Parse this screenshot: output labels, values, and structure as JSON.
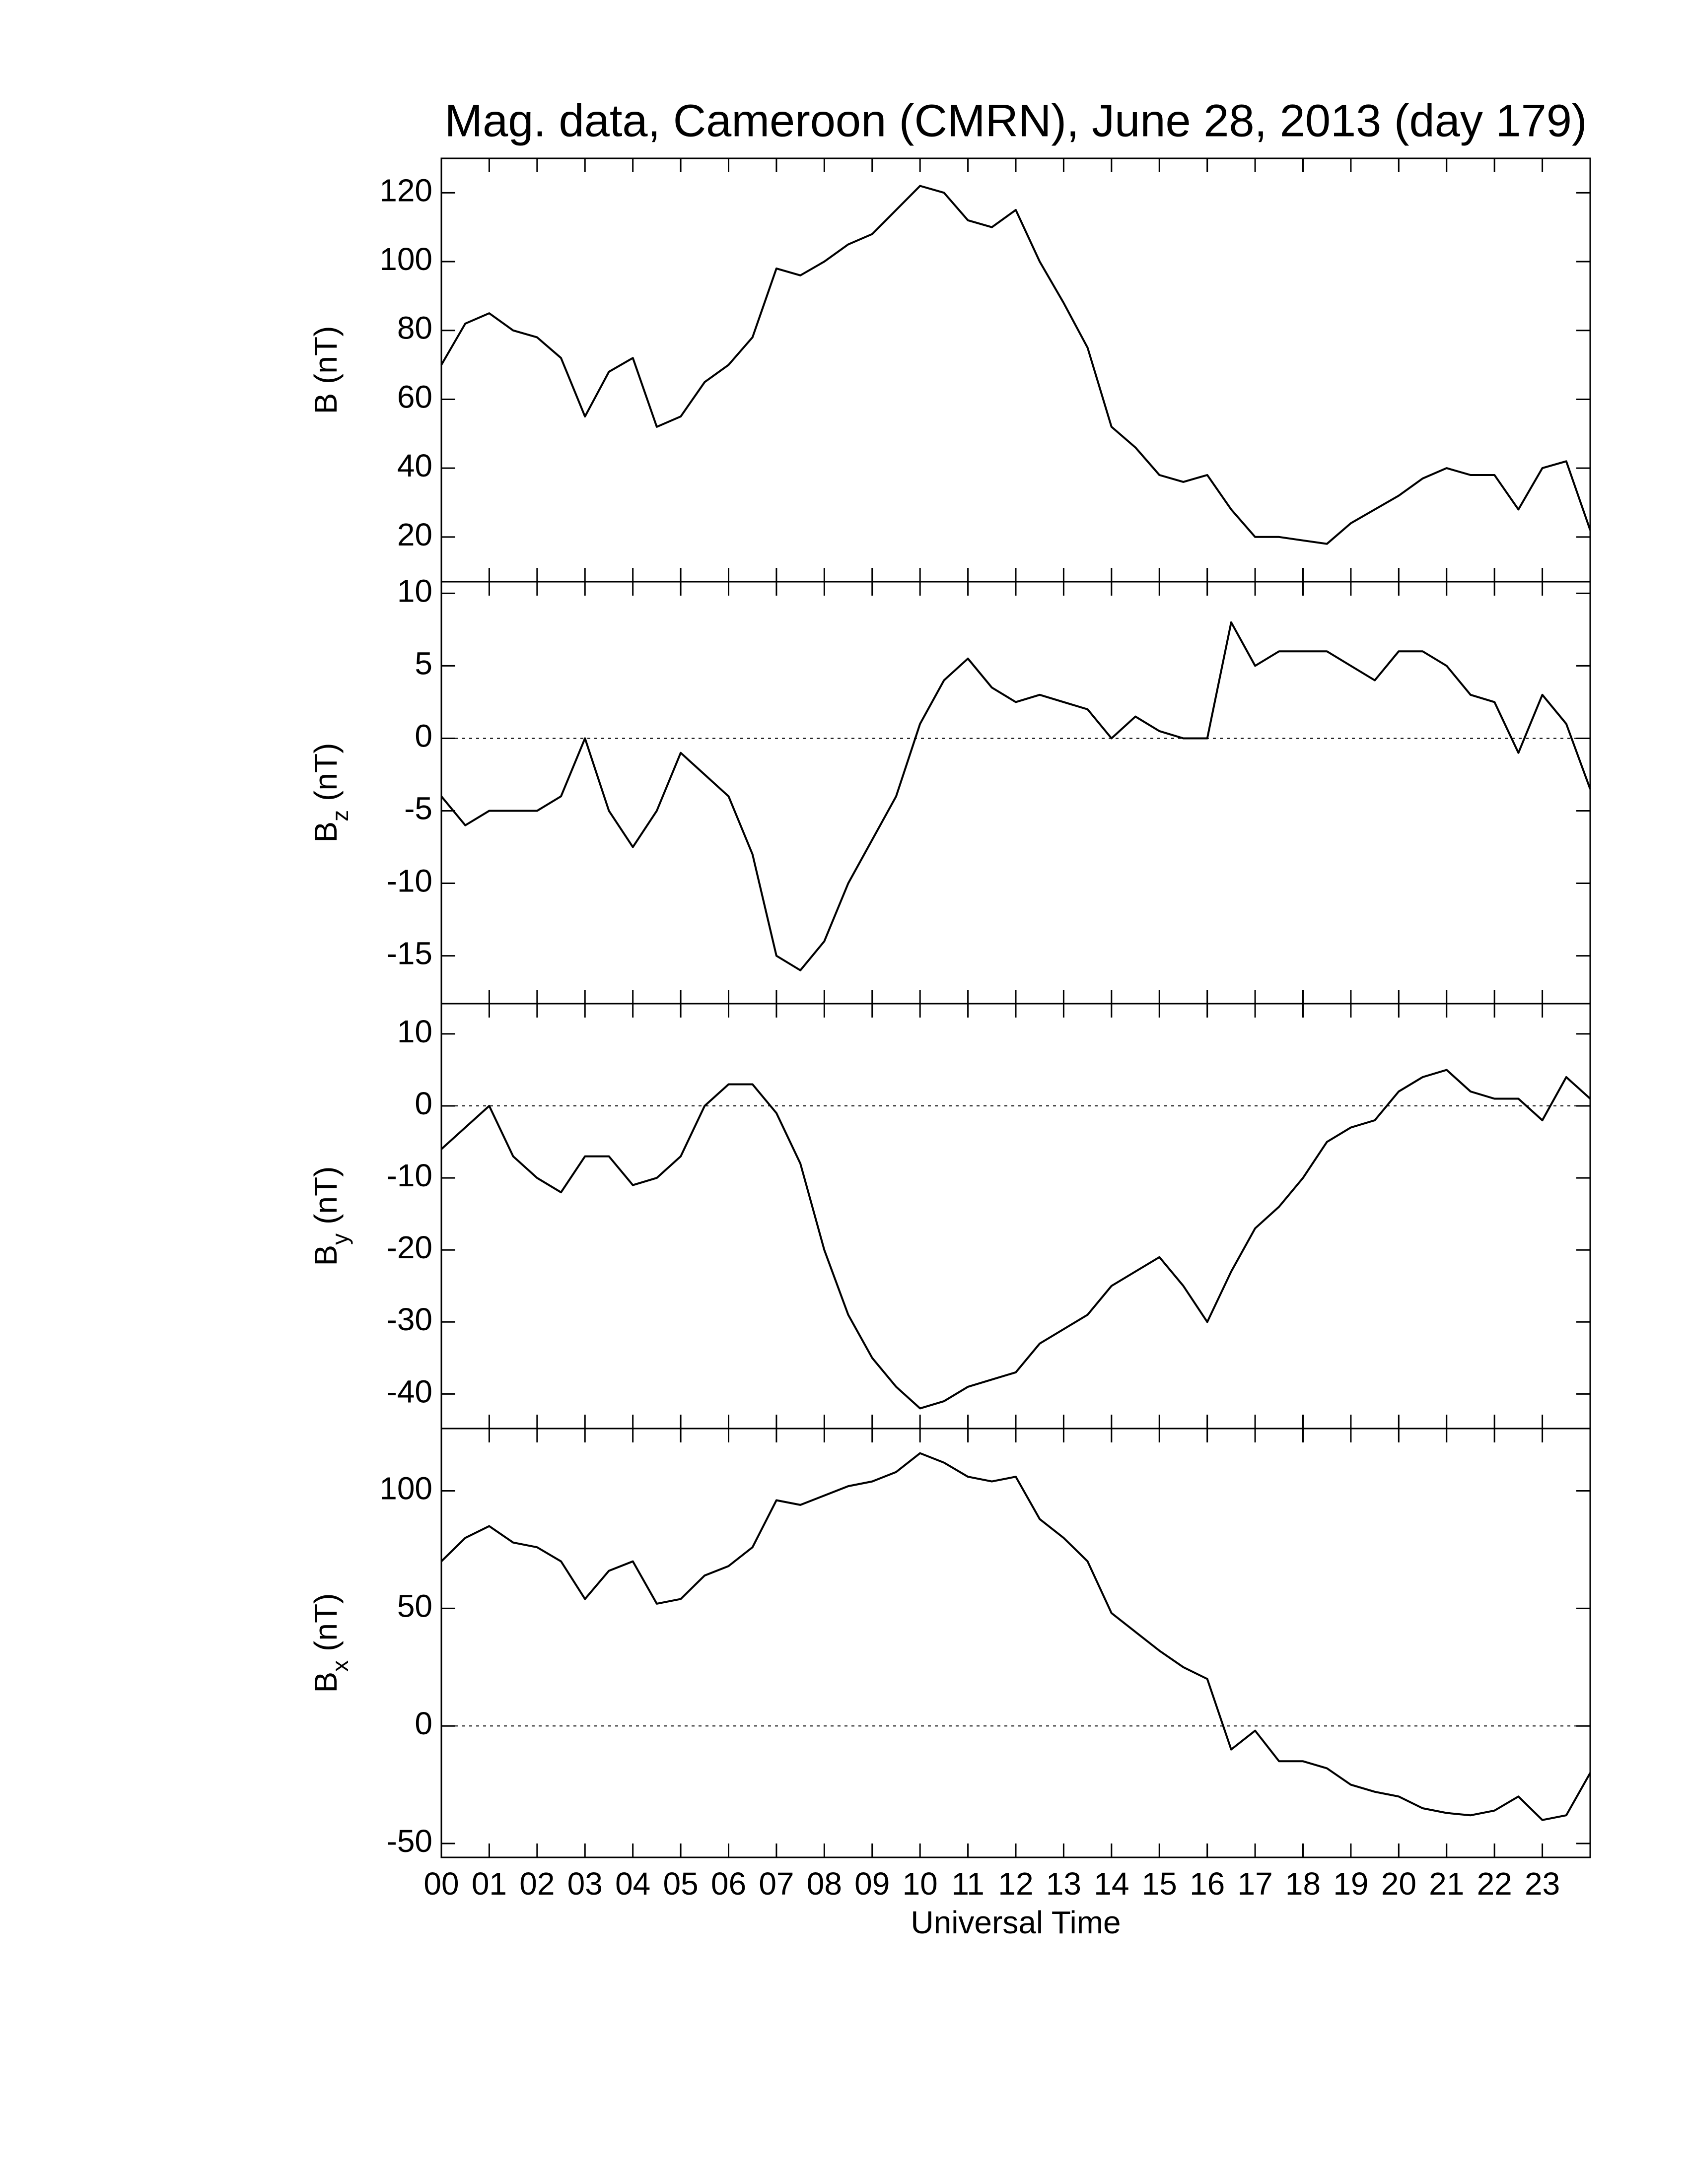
{
  "chart_data": [
    {
      "type": "line",
      "title": "Mag. data, Cameroon (CMRN), June 28, 2013 (day 179)",
      "ylabel": "B (nT)",
      "color": "#000000",
      "zero_line": false,
      "x": [
        0,
        0.5,
        1,
        1.5,
        2,
        2.5,
        3,
        3.5,
        4,
        4.5,
        5,
        5.5,
        6,
        6.5,
        7,
        7.5,
        8,
        8.5,
        9,
        9.5,
        10,
        10.5,
        11,
        11.5,
        12,
        12.5,
        13,
        13.5,
        14,
        14.5,
        15,
        15.5,
        16,
        16.5,
        17,
        17.5,
        18,
        18.5,
        19,
        19.5,
        20,
        20.5,
        21,
        21.5,
        22,
        22.5,
        23,
        23.5,
        24
      ],
      "values": [
        70,
        82,
        85,
        80,
        78,
        72,
        55,
        68,
        72,
        52,
        55,
        65,
        70,
        78,
        98,
        96,
        100,
        105,
        108,
        115,
        122,
        120,
        112,
        110,
        115,
        100,
        88,
        75,
        52,
        46,
        38,
        36,
        38,
        28,
        20,
        20,
        19,
        18,
        24,
        28,
        32,
        37,
        40,
        38,
        38,
        28,
        40,
        42,
        22
      ],
      "xlim": [
        0,
        24
      ],
      "ylim": [
        7,
        130
      ],
      "yticks": [
        20,
        40,
        60,
        80,
        100,
        120
      ]
    },
    {
      "type": "line",
      "ylabel": [
        "B",
        "z",
        "(nT)"
      ],
      "color": "#000000",
      "zero_line": true,
      "x": [
        0,
        0.5,
        1,
        1.5,
        2,
        2.5,
        3,
        3.5,
        4,
        4.5,
        5,
        5.5,
        6,
        6.5,
        7,
        7.5,
        8,
        8.5,
        9,
        9.5,
        10,
        10.5,
        11,
        11.5,
        12,
        12.5,
        13,
        13.5,
        14,
        14.5,
        15,
        15.5,
        16,
        16.5,
        17,
        17.5,
        18,
        18.5,
        19,
        19.5,
        20,
        20.5,
        21,
        21.5,
        22,
        22.5,
        23,
        23.5,
        24
      ],
      "values": [
        -4,
        -6,
        -5,
        -5,
        -5,
        -4,
        0,
        -5,
        -7.5,
        -5,
        -1,
        -2.5,
        -4,
        -8,
        -15,
        -16,
        -14,
        -10,
        -7,
        -4,
        1,
        4,
        5.5,
        3.5,
        2.5,
        3,
        2.5,
        2,
        0,
        1.5,
        0.5,
        0,
        0,
        8,
        5,
        6,
        6,
        6,
        5,
        4,
        6,
        6,
        5,
        3,
        2.5,
        -1,
        3,
        1,
        -3.5
      ],
      "xlim": [
        0,
        24
      ],
      "ylim": [
        -18.3,
        10.8
      ],
      "yticks": [
        -15,
        -10,
        -5,
        0,
        5,
        10
      ]
    },
    {
      "type": "line",
      "ylabel": [
        "B",
        "y",
        "(nT)"
      ],
      "color": "#000000",
      "zero_line": true,
      "x": [
        0,
        0.5,
        1,
        1.5,
        2,
        2.5,
        3,
        3.5,
        4,
        4.5,
        5,
        5.5,
        6,
        6.5,
        7,
        7.5,
        8,
        8.5,
        9,
        9.5,
        10,
        10.5,
        11,
        11.5,
        12,
        12.5,
        13,
        13.5,
        14,
        14.5,
        15,
        15.5,
        16,
        16.5,
        17,
        17.5,
        18,
        18.5,
        19,
        19.5,
        20,
        20.5,
        21,
        21.5,
        22,
        22.5,
        23,
        23.5,
        24
      ],
      "values": [
        -6,
        -3,
        0,
        -7,
        -10,
        -12,
        -7,
        -7,
        -11,
        -10,
        -7,
        0,
        3,
        3,
        -1,
        -8,
        -20,
        -29,
        -35,
        -39,
        -42,
        -41,
        -39,
        -38,
        -37,
        -33,
        -31,
        -29,
        -25,
        -23,
        -21,
        -25,
        -30,
        -23,
        -17,
        -14,
        -10,
        -5,
        -3,
        -2,
        2,
        4,
        5,
        2,
        1,
        1,
        -2,
        4,
        1
      ],
      "xlim": [
        0,
        24
      ],
      "ylim": [
        -44.8,
        14.2
      ],
      "yticks": [
        -40,
        -30,
        -20,
        -10,
        0,
        10
      ]
    },
    {
      "type": "line",
      "ylabel": [
        "B",
        "x",
        "(nT)"
      ],
      "xlabel": "Universal Time",
      "color": "#000000",
      "zero_line": true,
      "x": [
        0,
        0.5,
        1,
        1.5,
        2,
        2.5,
        3,
        3.5,
        4,
        4.5,
        5,
        5.5,
        6,
        6.5,
        7,
        7.5,
        8,
        8.5,
        9,
        9.5,
        10,
        10.5,
        11,
        11.5,
        12,
        12.5,
        13,
        13.5,
        14,
        14.5,
        15,
        15.5,
        16,
        16.5,
        17,
        17.5,
        18,
        18.5,
        19,
        19.5,
        20,
        20.5,
        21,
        21.5,
        22,
        22.5,
        23,
        23.5,
        24
      ],
      "values": [
        70,
        80,
        85,
        78,
        76,
        70,
        54,
        66,
        70,
        52,
        54,
        64,
        68,
        76,
        96,
        94,
        98,
        102,
        104,
        108,
        116,
        112,
        106,
        104,
        106,
        88,
        80,
        70,
        48,
        40,
        32,
        25,
        20,
        -10,
        -2,
        -15,
        -15,
        -18,
        -25,
        -28,
        -30,
        -35,
        -37,
        -38,
        -36,
        -30,
        -40,
        -38,
        -20
      ],
      "xlim": [
        0,
        24
      ],
      "ylim": [
        -55.9,
        126.5
      ],
      "yticks": [
        -50,
        0,
        50,
        100
      ],
      "xticks": [
        {
          "value": 0,
          "label": "00"
        },
        {
          "value": 1,
          "label": "01"
        },
        {
          "value": 2,
          "label": "02"
        },
        {
          "value": 3,
          "label": "03"
        },
        {
          "value": 4,
          "label": "04"
        },
        {
          "value": 5,
          "label": "05"
        },
        {
          "value": 6,
          "label": "06"
        },
        {
          "value": 7,
          "label": "07"
        },
        {
          "value": 8,
          "label": "08"
        },
        {
          "value": 9,
          "label": "09"
        },
        {
          "value": 10,
          "label": "10"
        },
        {
          "value": 11,
          "label": "11"
        },
        {
          "value": 12,
          "label": "12"
        },
        {
          "value": 13,
          "label": "13"
        },
        {
          "value": 14,
          "label": "14"
        },
        {
          "value": 15,
          "label": "15"
        },
        {
          "value": 16,
          "label": "16"
        },
        {
          "value": 17,
          "label": "17"
        },
        {
          "value": 18,
          "label": "18"
        },
        {
          "value": 19,
          "label": "19"
        },
        {
          "value": 20,
          "label": "20"
        },
        {
          "value": 21,
          "label": "21"
        },
        {
          "value": 22,
          "label": "22"
        },
        {
          "value": 23,
          "label": "23"
        }
      ]
    }
  ]
}
